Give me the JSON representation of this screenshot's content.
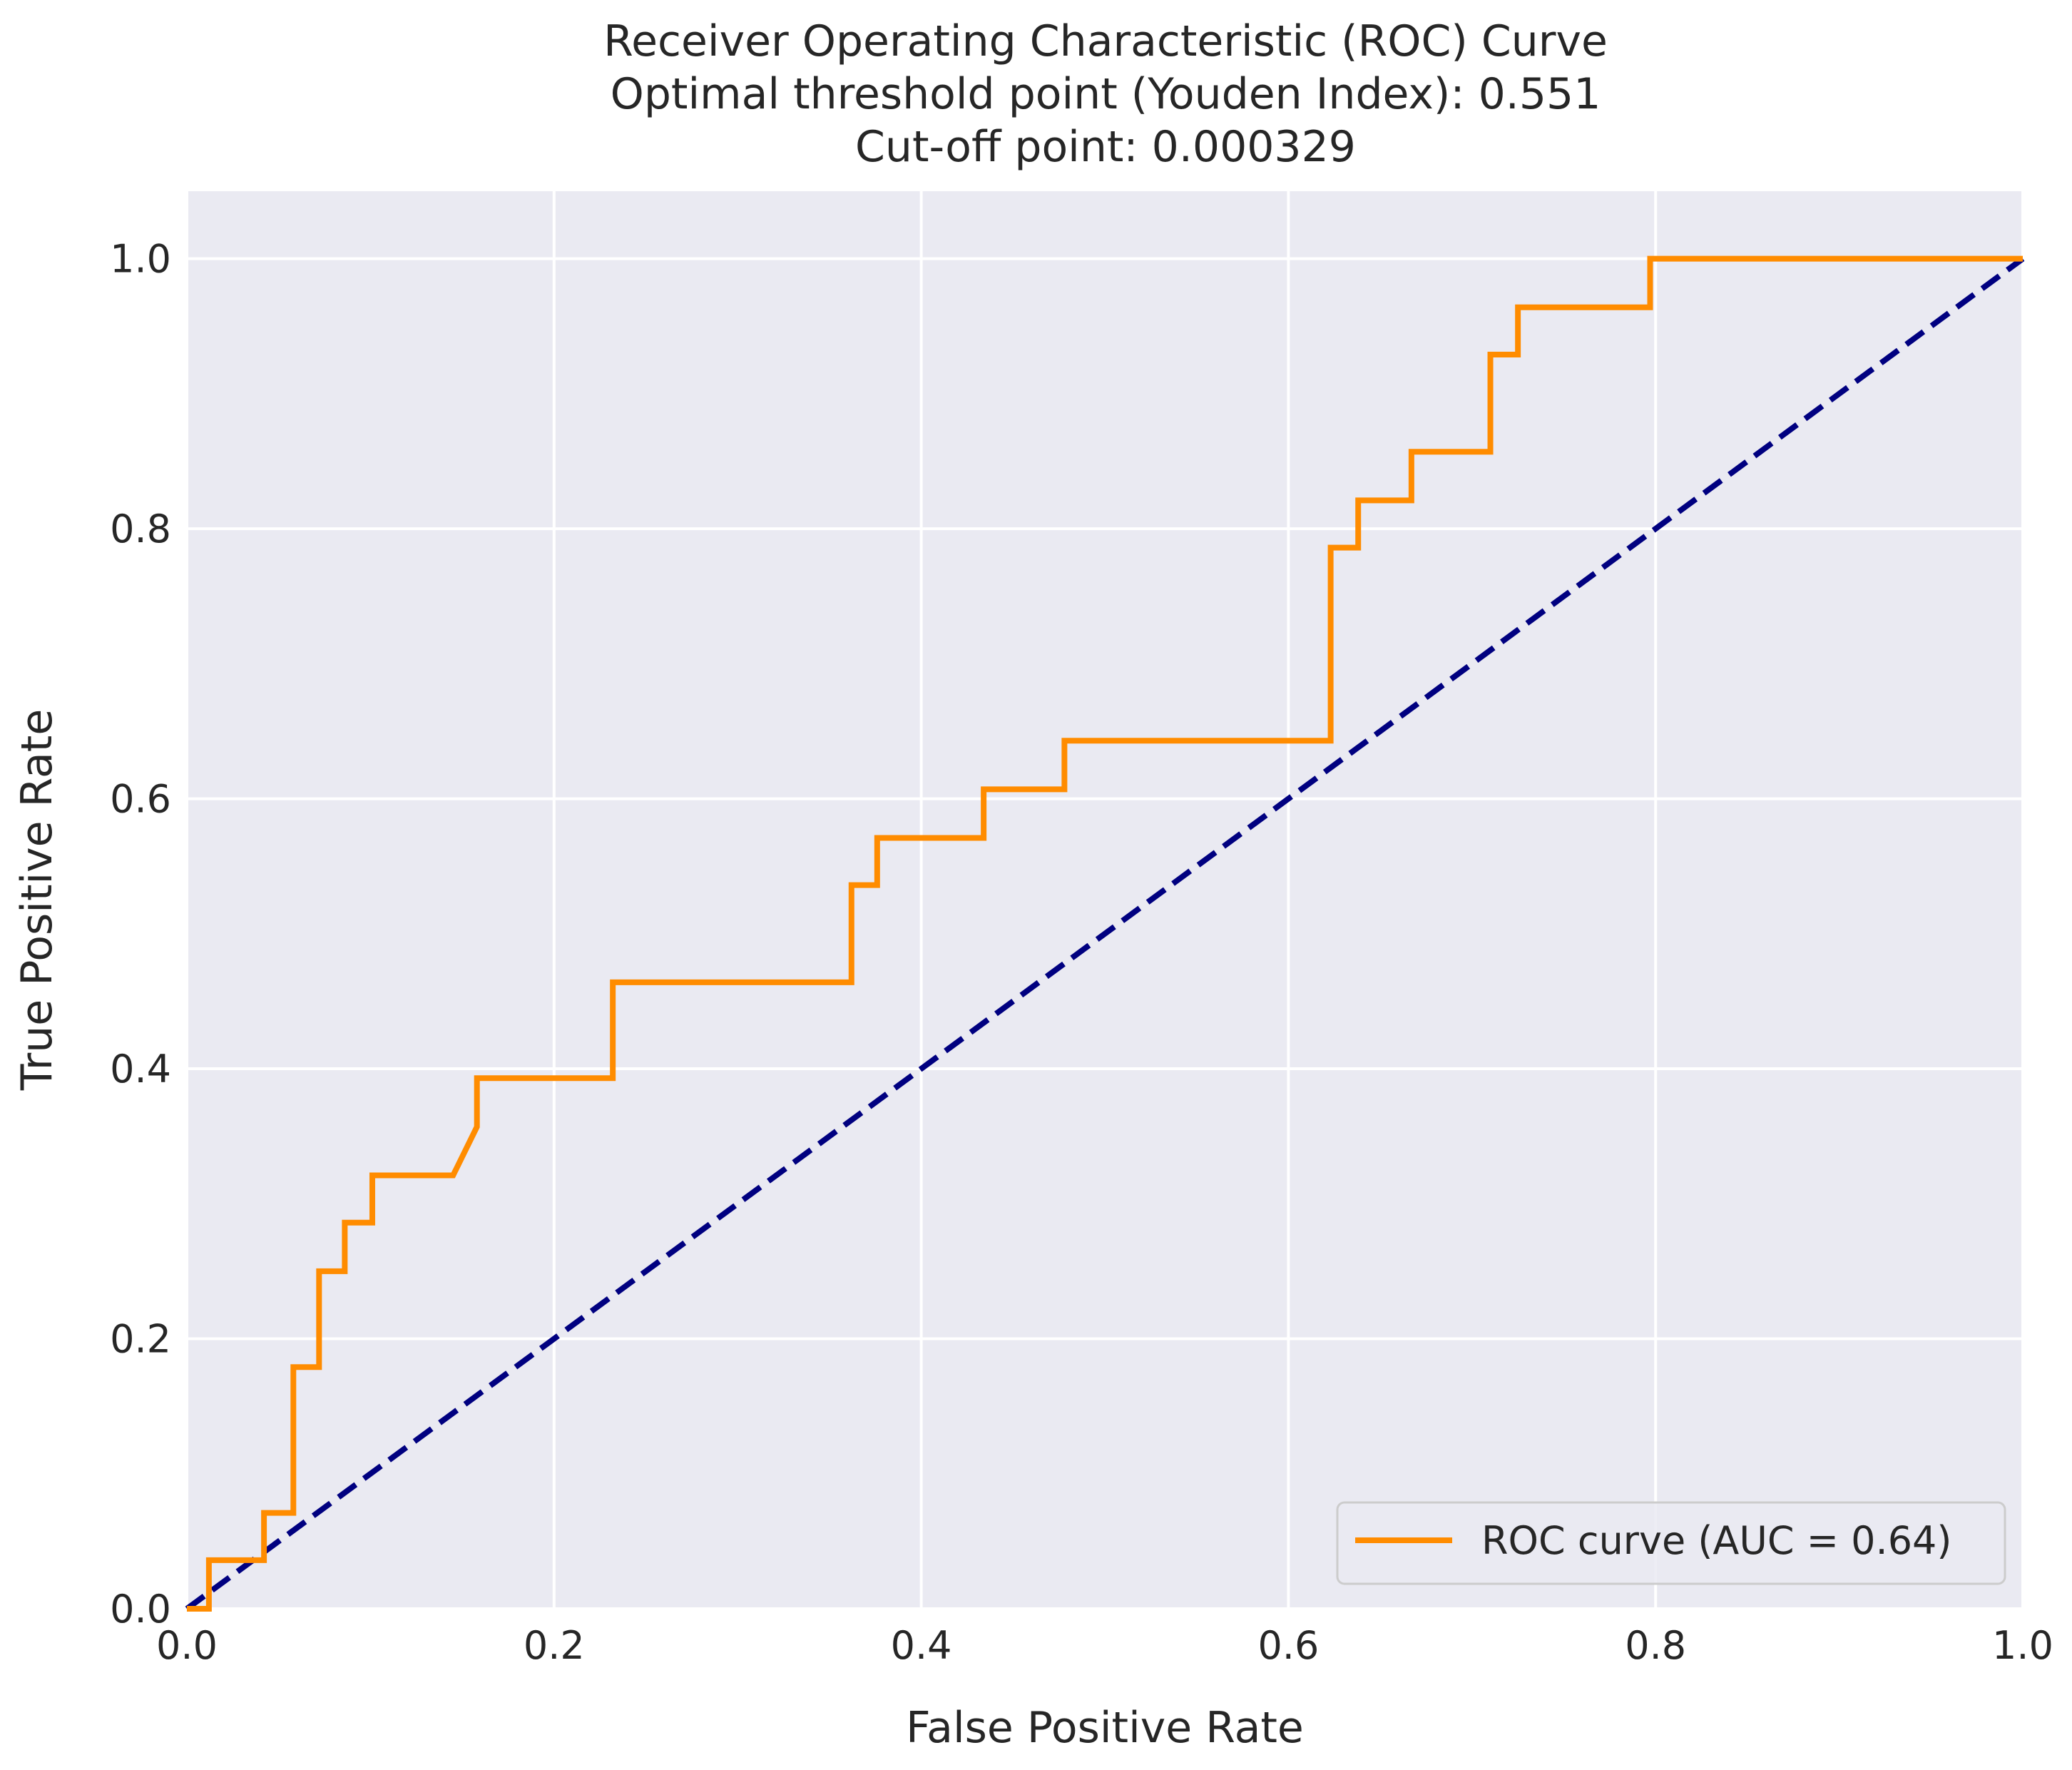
{
  "chart_data": {
    "type": "line",
    "title": "Receiver Operating Characteristic (ROC) Curve",
    "subtitle": [
      "Optimal threshold point (Youden Index): 0.551",
      "Cut-off point: 0.000329"
    ],
    "xlabel": "False Positive Rate",
    "ylabel": "True Positive Rate",
    "xlim": [
      0.0,
      1.0
    ],
    "ylim": [
      0.0,
      1.05
    ],
    "x_ticks": [
      0.0,
      0.2,
      0.4,
      0.6,
      0.8,
      1.0
    ],
    "x_tick_labels": [
      "0.0",
      "0.2",
      "0.4",
      "0.6",
      "0.8",
      "1.0"
    ],
    "y_ticks": [
      0.0,
      0.2,
      0.4,
      0.6,
      0.8,
      1.0
    ],
    "y_tick_labels": [
      "0.0",
      "0.2",
      "0.4",
      "0.6",
      "0.8",
      "1.0"
    ],
    "grid": true,
    "legend_position": "lower-right",
    "colors": {
      "plot_background": "#eaeaf2",
      "grid": "#ffffff",
      "roc": "#ff8c00",
      "diagonal": "#000080"
    },
    "series": [
      {
        "name": "ROC curve (AUC = 0.64)",
        "style": "solid",
        "x": [
          0.0,
          0.012,
          0.012,
          0.042,
          0.042,
          0.058,
          0.058,
          0.072,
          0.072,
          0.086,
          0.086,
          0.101,
          0.101,
          0.145,
          0.158,
          0.158,
          0.232,
          0.232,
          0.362,
          0.362,
          0.376,
          0.376,
          0.434,
          0.434,
          0.478,
          0.478,
          0.623,
          0.623,
          0.638,
          0.638,
          0.667,
          0.667,
          0.71,
          0.71,
          0.725,
          0.725,
          0.797,
          0.797,
          1.0
        ],
        "y": [
          0.0,
          0.0,
          0.036,
          0.036,
          0.071,
          0.071,
          0.179,
          0.179,
          0.25,
          0.25,
          0.286,
          0.286,
          0.321,
          0.321,
          0.357,
          0.393,
          0.393,
          0.464,
          0.464,
          0.536,
          0.536,
          0.571,
          0.571,
          0.607,
          0.607,
          0.643,
          0.643,
          0.786,
          0.786,
          0.821,
          0.821,
          0.857,
          0.857,
          0.929,
          0.929,
          0.964,
          0.964,
          1.0,
          1.0
        ]
      },
      {
        "style": "dashed",
        "x": [
          0.0,
          1.0
        ],
        "y": [
          0.0,
          1.0
        ]
      }
    ]
  }
}
